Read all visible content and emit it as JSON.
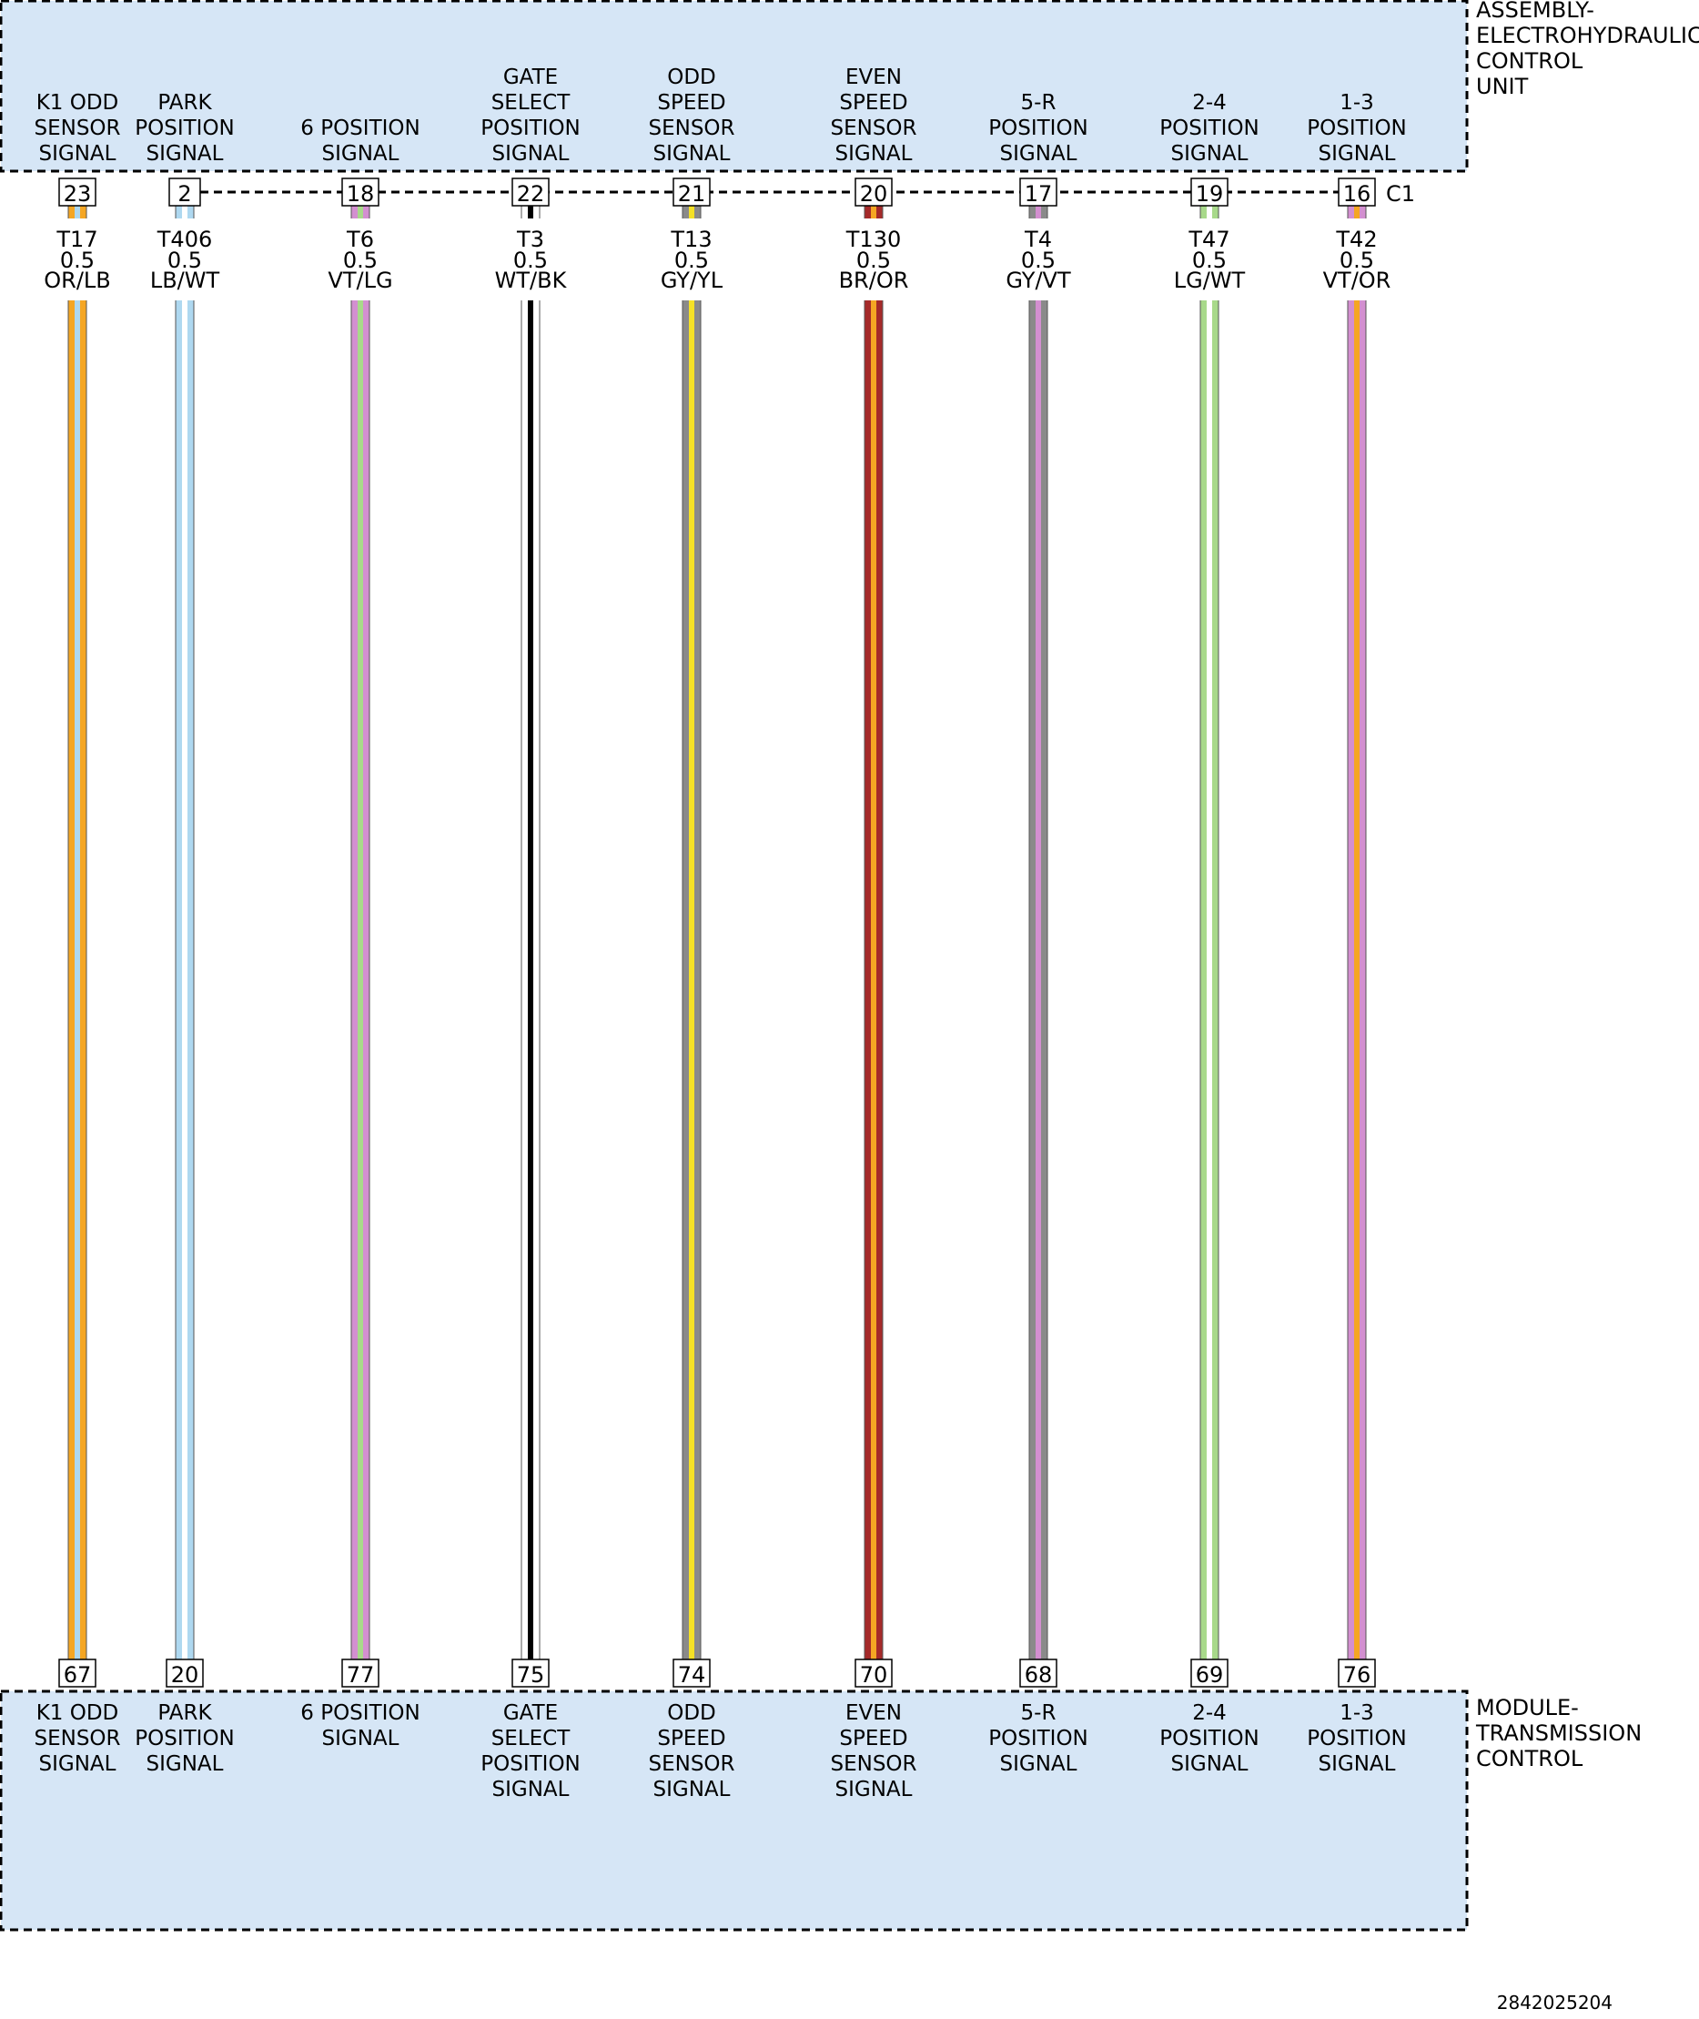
{
  "top_component": {
    "name_lines": [
      "ASSEMBLY-",
      "ELECTROHYDRAULIC",
      "CONTROL",
      "UNIT"
    ],
    "connector": "C1"
  },
  "bottom_component": {
    "name_lines": [
      "MODULE-",
      "TRANSMISSION",
      "CONTROL"
    ]
  },
  "wires": [
    {
      "id": "w1",
      "top_label": [
        "K1 ODD",
        "SENSOR",
        "SIGNAL"
      ],
      "top_pin": "23",
      "circuit": "T17",
      "gauge": "0.5",
      "color_code": "OR/LB",
      "colors": [
        "#F5A623",
        "#AED8F0"
      ],
      "bottom_pin": "67",
      "bottom_label": [
        "K1 ODD",
        "SENSOR",
        "SIGNAL"
      ]
    },
    {
      "id": "w2",
      "top_label": [
        "PARK",
        "POSITION",
        "SIGNAL"
      ],
      "top_pin": "2",
      "circuit": "T406",
      "gauge": "0.5",
      "color_code": "LB/WT",
      "colors": [
        "#AED8F0",
        "#FFFFFF"
      ],
      "bottom_pin": "20",
      "bottom_label": [
        "PARK",
        "POSITION",
        "SIGNAL"
      ]
    },
    {
      "id": "w3",
      "top_label": [
        "6 POSITION",
        "SIGNAL"
      ],
      "top_pin": "18",
      "circuit": "T6",
      "gauge": "0.5",
      "color_code": "VT/LG",
      "colors": [
        "#D38FD0",
        "#A8D98A"
      ],
      "bottom_pin": "77",
      "bottom_label": [
        "6 POSITION",
        "SIGNAL"
      ]
    },
    {
      "id": "w4",
      "top_label": [
        "GATE",
        "SELECT",
        "POSITION",
        "SIGNAL"
      ],
      "top_pin": "22",
      "circuit": "T3",
      "gauge": "0.5",
      "color_code": "WT/BK",
      "colors": [
        "#FFFFFF",
        "#000000"
      ],
      "bottom_pin": "75",
      "bottom_label": [
        "GATE",
        "SELECT",
        "POSITION",
        "SIGNAL"
      ]
    },
    {
      "id": "w5",
      "top_label": [
        "ODD",
        "SPEED",
        "SENSOR",
        "SIGNAL"
      ],
      "top_pin": "21",
      "circuit": "T13",
      "gauge": "0.5",
      "color_code": "GY/YL",
      "colors": [
        "#8A8A8A",
        "#F5E126"
      ],
      "bottom_pin": "74",
      "bottom_label": [
        "ODD",
        "SPEED",
        "SENSOR",
        "SIGNAL"
      ]
    },
    {
      "id": "w6",
      "top_label": [
        "EVEN",
        "SPEED",
        "SENSOR",
        "SIGNAL"
      ],
      "top_pin": "20",
      "circuit": "T130",
      "gauge": "0.5",
      "color_code": "BR/OR",
      "colors": [
        "#A52A2A",
        "#F5A623"
      ],
      "bottom_pin": "70",
      "bottom_label": [
        "EVEN",
        "SPEED",
        "SENSOR",
        "SIGNAL"
      ]
    },
    {
      "id": "w7",
      "top_label": [
        "5-R",
        "POSITION",
        "SIGNAL"
      ],
      "top_pin": "17",
      "circuit": "T4",
      "gauge": "0.5",
      "color_code": "GY/VT",
      "colors": [
        "#8A8A8A",
        "#D38FD0"
      ],
      "bottom_pin": "68",
      "bottom_label": [
        "5-R",
        "POSITION",
        "SIGNAL"
      ]
    },
    {
      "id": "w8",
      "top_label": [
        "2-4",
        "POSITION",
        "SIGNAL"
      ],
      "top_pin": "19",
      "circuit": "T47",
      "gauge": "0.5",
      "color_code": "LG/WT",
      "colors": [
        "#A8D98A",
        "#FFFFFF"
      ],
      "bottom_pin": "69",
      "bottom_label": [
        "2-4",
        "POSITION",
        "SIGNAL"
      ]
    },
    {
      "id": "w9",
      "top_label": [
        "1-3",
        "POSITION",
        "SIGNAL"
      ],
      "top_pin": "16",
      "circuit": "T42",
      "gauge": "0.5",
      "color_code": "VT/OR",
      "colors": [
        "#D38FD0",
        "#F5A623"
      ],
      "bottom_pin": "76",
      "bottom_label": [
        "1-3",
        "POSITION",
        "SIGNAL"
      ]
    }
  ],
  "colors": {
    "component_fill": "#D6E6F6",
    "line": "#000000",
    "wire_edge": "#555555"
  },
  "figure_id": "2842025204"
}
